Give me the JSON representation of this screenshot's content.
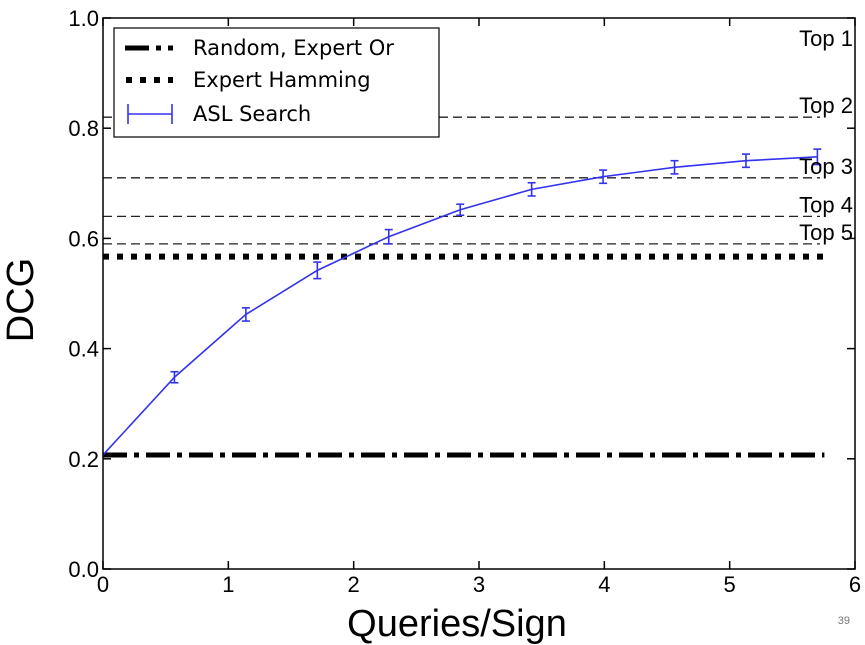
{
  "page_number": "39",
  "chart_data": {
    "type": "line",
    "title": "",
    "xlabel": "Queries/Sign",
    "ylabel": "DCG",
    "xlim": [
      0,
      6
    ],
    "ylim": [
      0.0,
      1.0
    ],
    "xticks": [
      "0",
      "1",
      "2",
      "3",
      "4",
      "5",
      "6"
    ],
    "yticks": [
      "0.0",
      "0.2",
      "0.4",
      "0.6",
      "0.8",
      "1.0"
    ],
    "grid": false,
    "legend_position": "top-left",
    "legend": [
      "Random, Expert Or",
      "Expert Hamming",
      "ASL Search"
    ],
    "reference_lines": [
      {
        "label": "Top 1",
        "y": null
      },
      {
        "label": "Top 2",
        "y": 0.82
      },
      {
        "label": "Top 3",
        "y": 0.71
      },
      {
        "label": "Top 4",
        "y": 0.64
      },
      {
        "label": "Top 5",
        "y": 0.59
      }
    ],
    "series": [
      {
        "name": "Random, Expert Or",
        "style": "dash-dot",
        "color": "#000000",
        "x": [
          0,
          5.7
        ],
        "y": [
          0.207,
          0.207
        ]
      },
      {
        "name": "Expert Hamming",
        "style": "dotted",
        "color": "#000000",
        "x": [
          0,
          5.7
        ],
        "y": [
          0.567,
          0.567
        ]
      },
      {
        "name": "ASL Search",
        "style": "solid-errorbar",
        "color": "#3333ee",
        "x": [
          0,
          0.57,
          1.14,
          1.71,
          2.28,
          2.85,
          3.42,
          3.99,
          4.56,
          5.13,
          5.7
        ],
        "y": [
          0.207,
          0.348,
          0.462,
          0.542,
          0.603,
          0.652,
          0.689,
          0.712,
          0.729,
          0.741,
          0.748
        ],
        "err": [
          0,
          0.01,
          0.012,
          0.015,
          0.013,
          0.01,
          0.012,
          0.012,
          0.012,
          0.012,
          0.014
        ]
      }
    ]
  }
}
